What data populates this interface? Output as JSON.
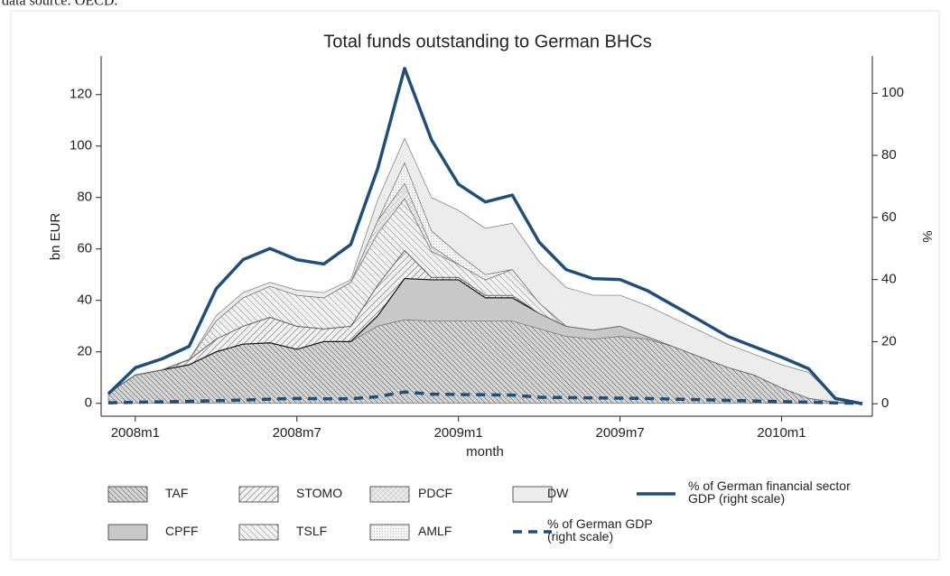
{
  "chart_data": {
    "type": "stacked-area",
    "note": "data source: OECD.",
    "title": "Total funds outstanding to German BHCs",
    "y_label": "bn EUR",
    "y2_label": "%",
    "x_label": "month",
    "categories": [
      null,
      "2008m1",
      null,
      null,
      null,
      null,
      null,
      "2008m7",
      null,
      null,
      null,
      null,
      null,
      "2009m1",
      null,
      null,
      null,
      null,
      null,
      "2009m7",
      null,
      null,
      null,
      null,
      null,
      "2010m1",
      null,
      null,
      null
    ],
    "ylim": [
      -5,
      135
    ],
    "yticks": [
      0,
      20,
      40,
      60,
      80,
      100,
      120
    ],
    "y2lim": [
      -4,
      112
    ],
    "y2ticks": [
      0,
      20,
      40,
      60,
      80,
      100
    ],
    "series": [
      {
        "name": "TAF",
        "color": "#d2d2d2",
        "values": [
          4,
          11,
          13,
          15,
          20,
          23,
          23.5,
          21,
          24,
          24,
          30,
          32.5,
          32,
          32,
          32,
          32,
          29,
          26,
          25,
          26,
          25,
          22,
          18,
          14,
          11,
          6,
          2,
          0.5,
          0
        ]
      },
      {
        "name": "CPFF",
        "color": "#c8c8c8",
        "values": [
          0,
          0,
          0,
          0,
          0,
          0,
          0,
          0,
          0,
          0,
          4,
          16,
          16,
          16,
          9,
          9,
          6,
          4,
          3.5,
          4,
          1,
          0,
          0,
          0,
          0,
          0,
          0,
          0,
          0
        ]
      },
      {
        "name": "STOMO",
        "color": "#f0f0f0",
        "values": [
          0,
          0,
          0,
          2,
          5,
          7,
          10,
          9,
          5,
          6,
          12,
          11,
          1,
          1,
          1,
          1,
          0,
          0,
          0,
          0,
          0,
          0,
          0,
          0,
          0,
          0,
          0,
          0,
          0
        ]
      },
      {
        "name": "TSLF",
        "color": "#f0f0f0",
        "values": [
          0,
          0,
          0,
          0,
          7,
          11,
          12,
          12,
          12,
          17,
          20,
          20,
          10,
          5,
          6,
          10,
          4,
          0,
          0,
          0,
          0,
          0,
          0,
          0,
          0,
          0,
          0,
          0,
          0
        ]
      },
      {
        "name": "PDCF",
        "color": "#e6e6e6",
        "values": [
          0,
          0,
          0,
          0,
          0,
          0,
          0,
          0,
          0,
          0,
          5,
          6,
          2,
          0,
          0,
          0,
          0,
          0,
          0,
          0,
          0,
          0,
          0,
          0,
          0,
          0,
          0,
          0,
          0
        ]
      },
      {
        "name": "AMLF",
        "color": "#f4f4f4",
        "values": [
          0,
          0,
          0,
          0,
          0,
          0,
          0,
          0,
          0,
          0,
          0,
          8,
          6,
          4,
          2,
          0,
          0,
          0,
          0,
          0,
          0,
          0,
          0,
          0,
          0,
          0,
          0,
          0,
          0
        ]
      },
      {
        "name": "DW",
        "color": "#ececec",
        "values": [
          0,
          0,
          0,
          0,
          2,
          2,
          1.5,
          2,
          2,
          1,
          8,
          9.5,
          13,
          17,
          18,
          18,
          16,
          15,
          13.5,
          12,
          12,
          11,
          10,
          9,
          8,
          9,
          10,
          1.5,
          0
        ]
      },
      {
        "name": "% of German financial sector GDP (right scale)",
        "color": "#1f4e79",
        "axis": "y2",
        "linestyle": "solid",
        "values": [
          3.2,
          11.6,
          14.5,
          18.5,
          37,
          46.4,
          50,
          46.4,
          45,
          51.3,
          75.7,
          108,
          85,
          70.7,
          65,
          67.2,
          52,
          43.2,
          40.3,
          40,
          36.5,
          31.6,
          26.7,
          21.7,
          18.3,
          15,
          11.3,
          1.7,
          0
        ]
      },
      {
        "name": "% of German GDP (right scale)",
        "color": "#1f4e79",
        "axis": "y2",
        "linestyle": "dashed",
        "values": [
          0.3,
          0.5,
          0.6,
          0.8,
          1,
          1.2,
          1.5,
          1.7,
          1.6,
          1.6,
          2.3,
          3.8,
          3.1,
          3,
          2.9,
          2.8,
          2.1,
          2,
          1.9,
          1.8,
          1.7,
          1.5,
          1.3,
          1.1,
          0.9,
          0.7,
          0.5,
          0.3,
          0.1
        ]
      }
    ],
    "legend_order": [
      0,
      2,
      4,
      6,
      7,
      1,
      3,
      5,
      8
    ]
  }
}
